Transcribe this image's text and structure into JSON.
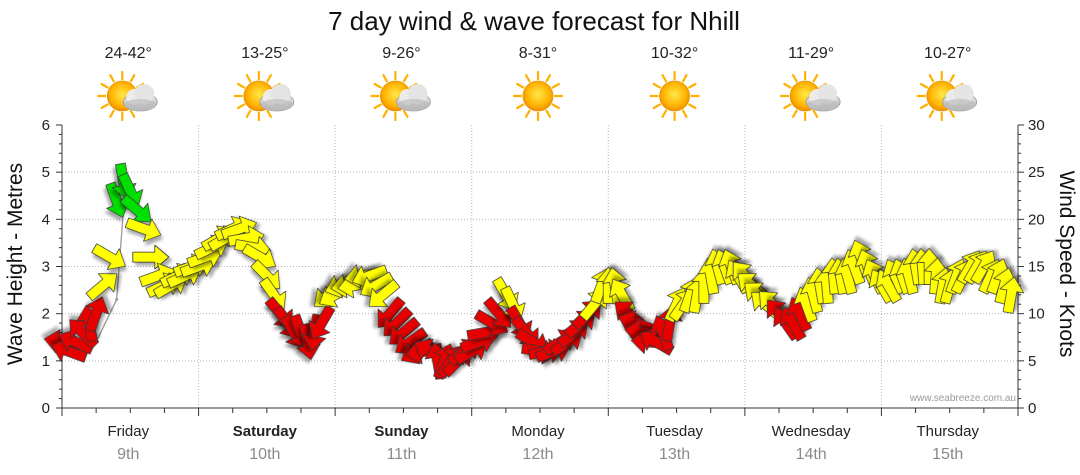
{
  "chart_data": {
    "type": "line",
    "title": "7 day wind & wave forecast for Nhill",
    "ylabel": "Wave Height - Metres",
    "y2label": "Wind Speed - Knots",
    "ylim": [
      0,
      6
    ],
    "y2lim": [
      0,
      30
    ],
    "yticks": [
      "0",
      "1",
      "2",
      "3",
      "4",
      "5",
      "6"
    ],
    "y2ticks": [
      "0",
      "5",
      "10",
      "15",
      "20",
      "25",
      "30"
    ],
    "grid": true,
    "credit": "www.seabreeze.com.au",
    "days": [
      {
        "name": "Friday",
        "date": "9th",
        "temp": "24-42°",
        "icon": "partly-cloudy-icon",
        "bold": false
      },
      {
        "name": "Saturday",
        "date": "10th",
        "temp": "13-25°",
        "icon": "partly-cloudy-icon",
        "bold": true
      },
      {
        "name": "Sunday",
        "date": "11th",
        "temp": "9-26°",
        "icon": "partly-cloudy-icon",
        "bold": true
      },
      {
        "name": "Monday",
        "date": "12th",
        "temp": "8-31°",
        "icon": "sun-icon",
        "bold": false
      },
      {
        "name": "Tuesday",
        "date": "13th",
        "temp": "10-32°",
        "icon": "sun-icon",
        "bold": false
      },
      {
        "name": "Wednesday",
        "date": "14th",
        "temp": "11-29°",
        "icon": "partly-cloudy-icon",
        "bold": false
      },
      {
        "name": "Thursday",
        "date": "15th",
        "temp": "10-27°",
        "icon": "partly-cloudy-icon",
        "bold": false
      }
    ],
    "wave_series": {
      "name": "Wave Height",
      "color": "#999999",
      "x": [
        0.0,
        0.25,
        0.4,
        0.45,
        0.5
      ],
      "values": [
        1.2,
        1.4,
        2.3,
        4.2,
        4.6
      ]
    },
    "wind_series": {
      "name": "Wind Speed",
      "x": [
        0.0,
        0.05,
        0.1,
        0.15,
        0.2,
        0.25,
        0.3,
        0.35,
        0.4,
        0.45,
        0.5,
        0.55,
        0.6,
        0.65,
        0.7,
        0.75,
        0.8,
        0.85,
        0.9,
        0.95,
        1.0,
        1.05,
        1.1,
        1.15,
        1.2,
        1.25,
        1.3,
        1.35,
        1.4,
        1.45,
        1.5,
        1.55,
        1.6,
        1.65,
        1.7,
        1.75,
        1.8,
        1.85,
        1.9,
        1.95,
        2.0,
        2.05,
        2.1,
        2.15,
        2.2,
        2.25,
        2.3,
        2.35,
        2.4,
        2.45,
        2.5,
        2.55,
        2.6,
        2.65,
        2.7,
        2.75,
        2.8,
        2.85,
        2.9,
        2.95,
        3.0,
        3.05,
        3.1,
        3.15,
        3.2,
        3.25,
        3.3,
        3.35,
        3.4,
        3.45,
        3.5,
        3.55,
        3.6,
        3.65,
        3.7,
        3.75,
        3.8,
        3.85,
        3.9,
        3.95,
        4.0,
        4.05,
        4.1,
        4.15,
        4.2,
        4.25,
        4.3,
        4.35,
        4.4,
        4.45,
        4.5,
        4.55,
        4.6,
        4.65,
        4.7,
        4.75,
        4.8,
        4.85,
        4.9,
        4.95,
        5.0,
        5.05,
        5.1,
        5.15,
        5.2,
        5.25,
        5.3,
        5.35,
        5.4,
        5.45,
        5.5,
        5.55,
        5.6,
        5.65,
        5.7,
        5.75,
        5.8,
        5.85,
        5.9,
        5.95,
        6.0,
        6.05,
        6.1,
        6.15,
        6.2,
        6.25,
        6.3,
        6.35,
        6.4,
        6.45,
        6.5,
        6.55,
        6.6,
        6.65,
        6.7,
        6.75,
        6.8,
        6.85,
        6.9,
        6.95
      ],
      "values": [
        7,
        6,
        7,
        8,
        9,
        10,
        13,
        16,
        22,
        24,
        23,
        21,
        19,
        16,
        14,
        13,
        13,
        14,
        14,
        15,
        15,
        16,
        17,
        18,
        18,
        19,
        19,
        18,
        17,
        16,
        14,
        12,
        10,
        9,
        8,
        8,
        7,
        8,
        9,
        12,
        12,
        13,
        13,
        13,
        14,
        14,
        13,
        12,
        10,
        9,
        8,
        7,
        6,
        6,
        6,
        5,
        5,
        5,
        5,
        6,
        6,
        7,
        8,
        9,
        10,
        12,
        11,
        9,
        8,
        7,
        6,
        6,
        6,
        7,
        7,
        8,
        9,
        10,
        11,
        13,
        13,
        13,
        12,
        10,
        9,
        8,
        7,
        7,
        8,
        9,
        11,
        11,
        12,
        12,
        13,
        14,
        15,
        15,
        15,
        14,
        14,
        13,
        12,
        11,
        11,
        10,
        9,
        9,
        10,
        11,
        12,
        13,
        13,
        14,
        14,
        14,
        15,
        16,
        15,
        14,
        13,
        13,
        14,
        14,
        14,
        15,
        15,
        15,
        14,
        13,
        13,
        14,
        14,
        15,
        15,
        15,
        14,
        14,
        13,
        12
      ],
      "direction_deg": [
        100,
        110,
        115,
        135,
        170,
        200,
        230,
        300,
        340,
        350,
        335,
        310,
        290,
        270,
        250,
        245,
        240,
        245,
        245,
        250,
        250,
        250,
        245,
        240,
        240,
        245,
        250,
        260,
        280,
        300,
        315,
        325,
        320,
        325,
        330,
        340,
        350,
        10,
        30,
        50,
        60,
        70,
        80,
        80,
        80,
        70,
        60,
        50,
        40,
        45,
        50,
        55,
        60,
        80,
        120,
        170,
        200,
        215,
        225,
        235,
        240,
        250,
        260,
        300,
        320,
        330,
        335,
        330,
        320,
        300,
        280,
        260,
        250,
        240,
        235,
        230,
        230,
        225,
        220,
        200,
        180,
        170,
        150,
        130,
        110,
        100,
        95,
        120,
        160,
        190,
        205,
        215,
        200,
        190,
        180,
        170,
        165,
        160,
        160,
        150,
        140,
        130,
        130,
        130,
        135,
        140,
        145,
        150,
        155,
        160,
        165,
        170,
        175,
        175,
        170,
        165,
        160,
        160,
        160,
        155,
        150,
        150,
        155,
        160,
        165,
        170,
        175,
        180,
        185,
        190,
        195,
        200,
        205,
        210,
        210,
        210,
        205,
        200,
        195,
        190
      ],
      "color_scale": [
        {
          "max": 10,
          "color": "#e60000"
        },
        {
          "max": 20,
          "color": "#ffff00"
        },
        {
          "max": 99,
          "color": "#00e000"
        }
      ]
    }
  }
}
